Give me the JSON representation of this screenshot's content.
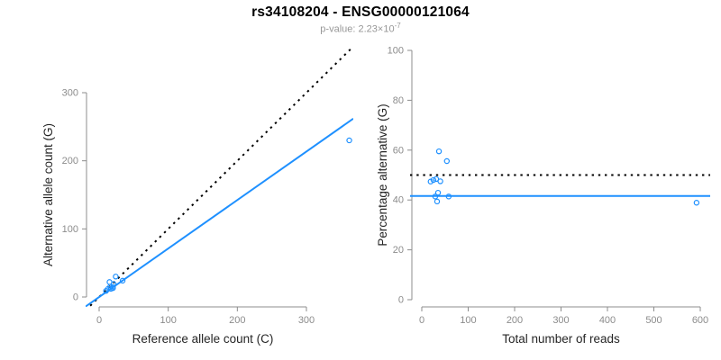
{
  "header": {
    "title": "rs34108204 - ENSG00000121064",
    "subtitle_base": "p-value: 2.23×10",
    "subtitle_exponent": "-7"
  },
  "colors": {
    "accent_blue": "#1E90FF",
    "line_black": "#000000",
    "axis_gray": "#8c8c8c",
    "tick_label_gray": "#8c8c8c",
    "axis_title_dark": "#262626",
    "subtitle_gray": "#979797"
  },
  "samples": [
    {
      "ref": 15,
      "alt": 22,
      "total": 37,
      "pct": 59.5
    },
    {
      "ref": 24,
      "alt": 30,
      "total": 54,
      "pct": 55.6
    },
    {
      "ref": 10,
      "alt": 9,
      "total": 19,
      "pct": 47.4
    },
    {
      "ref": 13,
      "alt": 12,
      "total": 25,
      "pct": 48.0
    },
    {
      "ref": 16,
      "alt": 15,
      "total": 31,
      "pct": 48.4
    },
    {
      "ref": 21,
      "alt": 19,
      "total": 40,
      "pct": 47.5
    },
    {
      "ref": 20,
      "alt": 15,
      "total": 35,
      "pct": 42.9
    },
    {
      "ref": 34,
      "alt": 24,
      "total": 58,
      "pct": 41.4
    },
    {
      "ref": 17,
      "alt": 12,
      "total": 29,
      "pct": 41.4
    },
    {
      "ref": 20,
      "alt": 13,
      "total": 33,
      "pct": 39.4
    },
    {
      "ref": 362,
      "alt": 230,
      "total": 592,
      "pct": 38.9
    }
  ],
  "chart_data": [
    {
      "id": "left",
      "type": "scatter",
      "xlabel": "Reference allele count (C)",
      "ylabel": "Alternative allele count (G)",
      "xlim": [
        0,
        300
      ],
      "ylim": [
        0,
        300
      ],
      "xticks": [
        0,
        100,
        200,
        300
      ],
      "yticks": [
        0,
        100,
        200,
        300
      ],
      "grid": false,
      "legend": "none",
      "points": [
        [
          15,
          22
        ],
        [
          24,
          30
        ],
        [
          10,
          9
        ],
        [
          13,
          12
        ],
        [
          16,
          15
        ],
        [
          21,
          19
        ],
        [
          20,
          15
        ],
        [
          34,
          24
        ],
        [
          17,
          12
        ],
        [
          20,
          13
        ],
        [
          362,
          230
        ]
      ],
      "lines": [
        {
          "name": "identity-line",
          "kind": "abline",
          "slope": 1,
          "intercept": 0,
          "style": "dotted",
          "color": "#000000",
          "meaning": "expected 1:1 allele ratio"
        },
        {
          "name": "fit-line",
          "kind": "abline",
          "slope": 0.712,
          "intercept": 0,
          "style": "solid",
          "color": "#1E90FF",
          "meaning": "fitted allelic ratio"
        }
      ]
    },
    {
      "id": "right",
      "type": "scatter",
      "xlabel": "Total number of reads",
      "ylabel": "Percentage alternative (G)",
      "xlim": [
        0,
        600
      ],
      "ylim": [
        0,
        100
      ],
      "xticks": [
        0,
        100,
        200,
        300,
        400,
        500,
        600
      ],
      "yticks": [
        0,
        20,
        40,
        60,
        80,
        100
      ],
      "grid": false,
      "legend": "none",
      "points": [
        [
          37,
          59.5
        ],
        [
          54,
          55.6
        ],
        [
          19,
          47.4
        ],
        [
          25,
          48.0
        ],
        [
          31,
          48.4
        ],
        [
          40,
          47.5
        ],
        [
          35,
          42.9
        ],
        [
          58,
          41.4
        ],
        [
          29,
          41.4
        ],
        [
          33,
          39.4
        ],
        [
          592,
          38.9
        ]
      ],
      "lines": [
        {
          "name": "expected-50-line",
          "kind": "hline",
          "y": 50,
          "style": "dotted",
          "color": "#000000",
          "meaning": "expected 50%"
        },
        {
          "name": "mean-percentage-line",
          "kind": "hline",
          "y": 41.6,
          "style": "solid",
          "color": "#1E90FF",
          "meaning": "observed mean percentage alternative"
        }
      ]
    }
  ]
}
